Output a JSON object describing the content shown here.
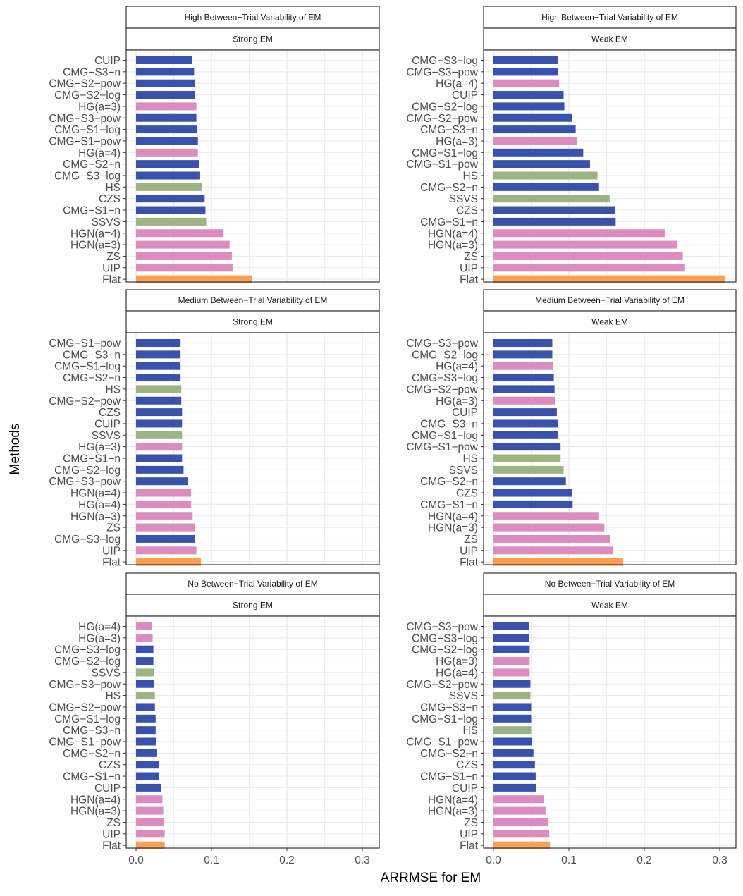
{
  "colors": {
    "blue": "#3953ad",
    "pink": "#dc8cbf",
    "green": "#9cb484",
    "orange": "#ff9f53",
    "grid": "#ebebeb",
    "panel_border": "#333333",
    "strip_bg": "#ffffff",
    "axis_text": "#4d4d4d",
    "title_text": "#000000"
  },
  "chart_data": {
    "type": "bar",
    "orientation": "horizontal",
    "xlabel": "ARRMSE for EM",
    "ylabel": "Methods",
    "xlim": [
      0,
      0.32
    ],
    "xticks": [
      0.0,
      0.1,
      0.2,
      0.3
    ],
    "xtick_labels": [
      "0.0",
      "0.1",
      "0.2",
      "0.3"
    ],
    "grid": true,
    "panels": [
      {
        "strip_top": "High Between−Trial Variability of EM",
        "strip_bottom": "Strong EM",
        "categories": [
          "CUIP",
          "CMG−S3−n",
          "CMG−S2−pow",
          "CMG−S2−log",
          "HG(a=3)",
          "CMG−S3−pow",
          "CMG−S1−log",
          "CMG−S1−pow",
          "HG(a=4)",
          "CMG−S2−n",
          "CMG−S3−log",
          "HS",
          "CZS",
          "CMG−S1−n",
          "SSVS",
          "HGN(a=4)",
          "HGN(a=3)",
          "ZS",
          "UIP",
          "Flat"
        ],
        "values": [
          0.074,
          0.077,
          0.078,
          0.078,
          0.08,
          0.08,
          0.081,
          0.082,
          0.082,
          0.084,
          0.085,
          0.087,
          0.091,
          0.092,
          0.093,
          0.116,
          0.124,
          0.127,
          0.128,
          0.154
        ],
        "groups": [
          "blue",
          "blue",
          "blue",
          "blue",
          "pink",
          "blue",
          "blue",
          "blue",
          "pink",
          "blue",
          "blue",
          "green",
          "blue",
          "blue",
          "green",
          "pink",
          "pink",
          "pink",
          "pink",
          "orange"
        ]
      },
      {
        "strip_top": "High Between−Trial Variability of EM",
        "strip_bottom": "Weak EM",
        "categories": [
          "CMG−S3−log",
          "CMG−S3−pow",
          "HG(a=4)",
          "CUIP",
          "CMG−S2−log",
          "CMG−S2−pow",
          "CMG−S3−n",
          "HG(a=3)",
          "CMG−S1−log",
          "CMG−S1−pow",
          "HS",
          "CMG−S2−n",
          "SSVS",
          "CZS",
          "CMG−S1−n",
          "HGN(a=4)",
          "HGN(a=3)",
          "ZS",
          "UIP",
          "Flat"
        ],
        "values": [
          0.085,
          0.086,
          0.087,
          0.093,
          0.094,
          0.104,
          0.109,
          0.111,
          0.119,
          0.128,
          0.138,
          0.14,
          0.154,
          0.161,
          0.162,
          0.227,
          0.243,
          0.251,
          0.254,
          0.307
        ],
        "groups": [
          "blue",
          "blue",
          "pink",
          "blue",
          "blue",
          "blue",
          "blue",
          "pink",
          "blue",
          "blue",
          "green",
          "blue",
          "green",
          "blue",
          "blue",
          "pink",
          "pink",
          "pink",
          "pink",
          "orange"
        ]
      },
      {
        "strip_top": "Medium Between−Trial Variability of EM",
        "strip_bottom": "Strong EM",
        "categories": [
          "CMG−S1−pow",
          "CMG−S3−n",
          "CMG−S1−log",
          "CMG−S2−n",
          "HS",
          "CMG−S2−pow",
          "CZS",
          "CUIP",
          "SSVS",
          "HG(a=3)",
          "CMG−S1−n",
          "CMG−S2−log",
          "CMG−S3−pow",
          "HGN(a=4)",
          "HG(a=4)",
          "HGN(a=3)",
          "ZS",
          "CMG−S3−log",
          "UIP",
          "Flat"
        ],
        "values": [
          0.059,
          0.059,
          0.059,
          0.059,
          0.06,
          0.06,
          0.061,
          0.061,
          0.061,
          0.061,
          0.061,
          0.063,
          0.069,
          0.073,
          0.073,
          0.075,
          0.078,
          0.078,
          0.08,
          0.086
        ],
        "groups": [
          "blue",
          "blue",
          "blue",
          "blue",
          "green",
          "blue",
          "blue",
          "blue",
          "green",
          "pink",
          "blue",
          "blue",
          "blue",
          "pink",
          "pink",
          "pink",
          "pink",
          "blue",
          "pink",
          "orange"
        ]
      },
      {
        "strip_top": "Medium Between−Trial Variability of EM",
        "strip_bottom": "Weak EM",
        "categories": [
          "CMG−S3−pow",
          "CMG−S2−log",
          "HG(a=4)",
          "CMG−S3−log",
          "CMG−S2−pow",
          "HG(a=3)",
          "CUIP",
          "CMG−S3−n",
          "CMG−S1−log",
          "CMG−S1−pow",
          "HS",
          "SSVS",
          "CMG−S2−n",
          "CZS",
          "CMG−S1−n",
          "HGN(a=4)",
          "HGN(a=3)",
          "ZS",
          "UIP",
          "Flat"
        ],
        "values": [
          0.078,
          0.078,
          0.079,
          0.08,
          0.081,
          0.082,
          0.084,
          0.085,
          0.085,
          0.089,
          0.089,
          0.093,
          0.096,
          0.104,
          0.105,
          0.14,
          0.147,
          0.155,
          0.158,
          0.172
        ],
        "groups": [
          "blue",
          "blue",
          "pink",
          "blue",
          "blue",
          "pink",
          "blue",
          "blue",
          "blue",
          "blue",
          "green",
          "green",
          "blue",
          "blue",
          "blue",
          "pink",
          "pink",
          "pink",
          "pink",
          "orange"
        ]
      },
      {
        "strip_top": "No Between−Trial Variability of EM",
        "strip_bottom": "Strong EM",
        "categories": [
          "HG(a=4)",
          "HG(a=3)",
          "CMG−S3−log",
          "CMG−S2−log",
          "SSVS",
          "CMG−S3−pow",
          "HS",
          "CMG−S2−pow",
          "CMG−S1−log",
          "CMG−S3−n",
          "CMG−S1−pow",
          "CMG−S2−n",
          "CZS",
          "CMG−S1−n",
          "CUIP",
          "HGN(a=4)",
          "HGN(a=3)",
          "ZS",
          "UIP",
          "Flat"
        ],
        "values": [
          0.021,
          0.022,
          0.023,
          0.023,
          0.024,
          0.024,
          0.025,
          0.025,
          0.026,
          0.026,
          0.027,
          0.028,
          0.03,
          0.03,
          0.033,
          0.035,
          0.036,
          0.037,
          0.038,
          0.038
        ],
        "groups": [
          "pink",
          "pink",
          "blue",
          "blue",
          "green",
          "blue",
          "green",
          "blue",
          "blue",
          "blue",
          "blue",
          "blue",
          "blue",
          "blue",
          "blue",
          "pink",
          "pink",
          "pink",
          "pink",
          "orange"
        ]
      },
      {
        "strip_top": "No Between−Trial Variability of EM",
        "strip_bottom": "Weak EM",
        "categories": [
          "CMG−S3−pow",
          "CMG−S3−log",
          "CMG−S2−log",
          "HG(a=3)",
          "HG(a=4)",
          "CMG−S2−pow",
          "SSVS",
          "CMG−S3−n",
          "CMG−S1−log",
          "HS",
          "CMG−S1−pow",
          "CMG−S2−n",
          "CZS",
          "CMG−S1−n",
          "CUIP",
          "HGN(a=4)",
          "HGN(a=3)",
          "ZS",
          "UIP",
          "Flat"
        ],
        "values": [
          0.047,
          0.047,
          0.048,
          0.048,
          0.048,
          0.049,
          0.049,
          0.05,
          0.05,
          0.05,
          0.051,
          0.053,
          0.055,
          0.056,
          0.057,
          0.067,
          0.069,
          0.073,
          0.074,
          0.075
        ],
        "groups": [
          "blue",
          "blue",
          "blue",
          "pink",
          "pink",
          "blue",
          "green",
          "blue",
          "blue",
          "green",
          "blue",
          "blue",
          "blue",
          "blue",
          "blue",
          "pink",
          "pink",
          "pink",
          "pink",
          "orange"
        ]
      }
    ]
  }
}
